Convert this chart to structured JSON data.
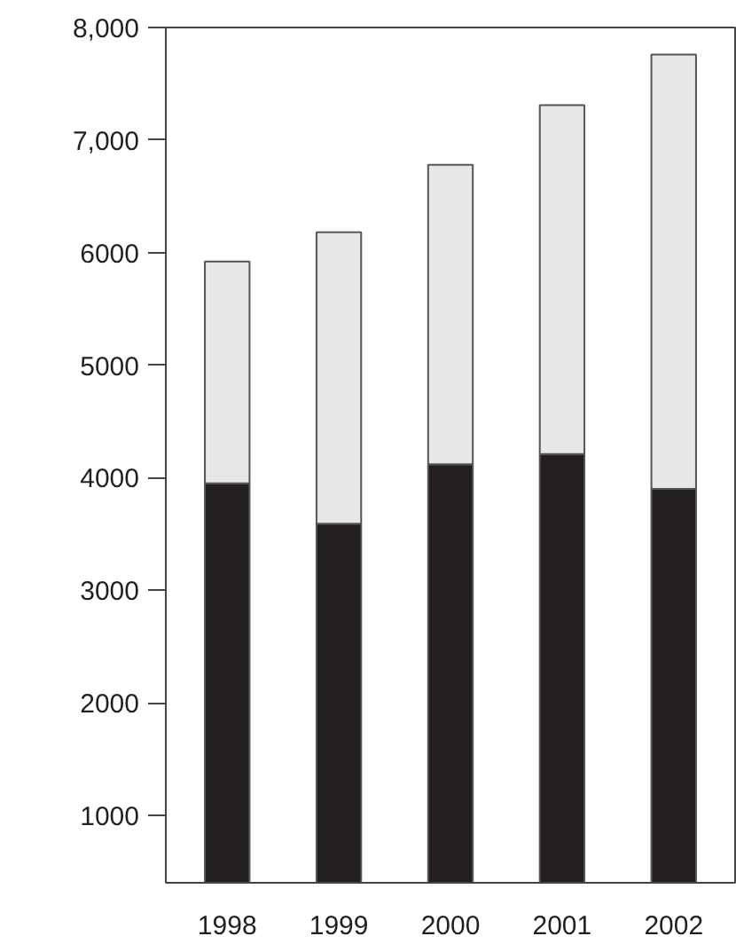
{
  "chart_data": {
    "type": "bar",
    "stacked": true,
    "categories": [
      "1998",
      "1999",
      "2000",
      "2001",
      "2002"
    ],
    "series": [
      {
        "color": "#231f20",
        "values": [
          3950,
          3590,
          4120,
          4210,
          3900
        ]
      },
      {
        "color": "#e6e7e8",
        "values": [
          1970,
          2590,
          2660,
          3100,
          3860
        ]
      }
    ],
    "ylim": [
      400,
      8000
    ],
    "yticks": [
      1000,
      2000,
      3000,
      4000,
      5000,
      6000,
      {
        "value": 7000,
        "label": "7,000"
      },
      {
        "value": 8000,
        "label": "8,000"
      }
    ],
    "grid": false
  }
}
